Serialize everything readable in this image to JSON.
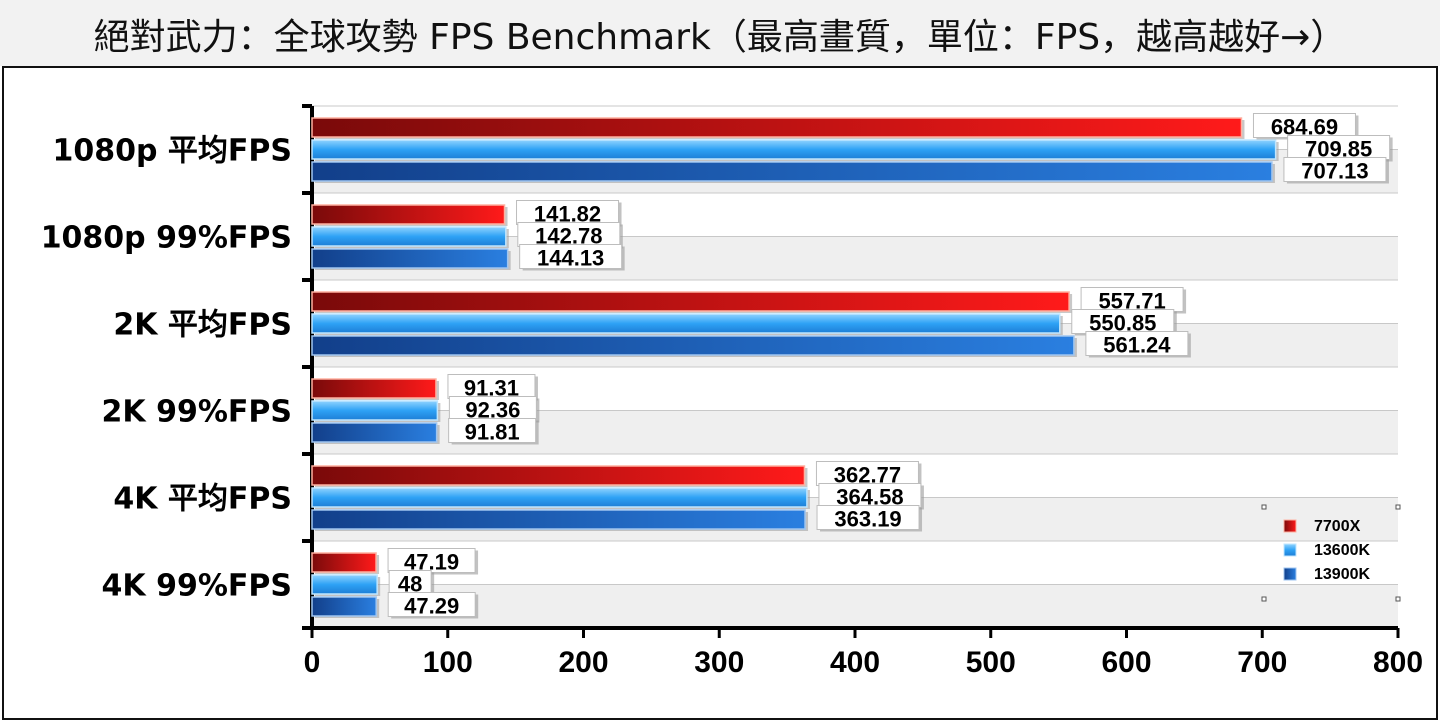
{
  "title": "絕對武力：全球攻勢 FPS Benchmark（最高畫質，單位：FPS，越高越好→）",
  "chart_data": {
    "type": "bar",
    "orientation": "horizontal",
    "title": "絕對武力：全球攻勢 FPS Benchmark（最高畫質，單位：FPS，越高越好→）",
    "xlabel": "",
    "ylabel": "",
    "xlim": [
      0,
      800
    ],
    "x_ticks": [
      "0",
      "100",
      "200",
      "300",
      "400",
      "500",
      "600",
      "700",
      "800"
    ],
    "grid": true,
    "legend_position": "bottom-right",
    "categories": [
      "1080p 平均FPS",
      "1080p 99%FPS",
      "2K 平均FPS",
      "2K 99%FPS",
      "4K 平均FPS",
      "4K 99%FPS"
    ],
    "series": [
      {
        "name": "7700X",
        "color": "#e8101a",
        "values": [
          684.69,
          141.82,
          557.71,
          91.31,
          362.77,
          47.19
        ]
      },
      {
        "name": "13600K",
        "color": "#2a9df4",
        "values": [
          709.85,
          142.78,
          550.85,
          92.36,
          364.58,
          48
        ]
      },
      {
        "name": "13900K",
        "color": "#1f5fbf",
        "values": [
          707.13,
          144.13,
          561.24,
          91.81,
          363.19,
          47.29
        ]
      }
    ]
  }
}
